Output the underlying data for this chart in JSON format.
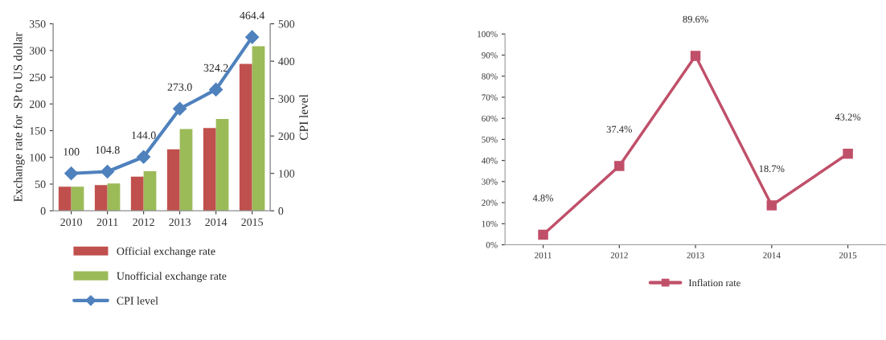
{
  "chart_data": [
    {
      "type": "bar",
      "categories": [
        "2010",
        "2011",
        "2012",
        "2013",
        "2014",
        "2015"
      ],
      "ylabel": "Exchange rate for  SP to US dollar",
      "y2label": "CPI level",
      "ylim": [
        0,
        350
      ],
      "yticks": [
        0,
        50,
        100,
        150,
        200,
        250,
        300,
        350
      ],
      "y2lim": [
        0,
        500
      ],
      "y2ticks": [
        0,
        100,
        200,
        300,
        400,
        500
      ],
      "legend": "bottom",
      "grid": false,
      "series": [
        {
          "name": "Official exchange rate",
          "color": "#c0504d",
          "values": [
            45,
            48,
            64,
            115,
            155,
            275
          ]
        },
        {
          "name": "Unofficial exchange rate",
          "color": "#9bbb59",
          "values": [
            45,
            51,
            74,
            153,
            172,
            308
          ]
        },
        {
          "name": "CPI level",
          "type": "line",
          "axis": "y2",
          "marker": "diamond",
          "color": "#4f81bd",
          "values": [
            100,
            104.8,
            144.0,
            273.0,
            324.2,
            464.4
          ],
          "value_labels": [
            "100",
            "104.8",
            "144.0",
            "273.0",
            "324.2",
            "464.4"
          ]
        }
      ]
    },
    {
      "type": "line",
      "categories": [
        "2011",
        "2012",
        "2013",
        "2014",
        "2015"
      ],
      "ylim": [
        0,
        100
      ],
      "yticks": [
        {
          "value": 0,
          "label": "0%"
        },
        {
          "value": 10,
          "label": "10%"
        },
        {
          "value": 20,
          "label": "20%"
        },
        {
          "value": 30,
          "label": "30%"
        },
        {
          "value": 40,
          "label": "40%"
        },
        {
          "value": 50,
          "label": "50%"
        },
        {
          "value": 60,
          "label": "60%"
        },
        {
          "value": 70,
          "label": "70%"
        },
        {
          "value": 80,
          "label": "80%"
        },
        {
          "value": 90,
          "label": "90%"
        },
        {
          "value": 100,
          "label": "100%"
        }
      ],
      "legend": "bottom",
      "grid": false,
      "series": [
        {
          "name": "Inflation rate",
          "color": "#c0506a",
          "marker": "square",
          "values": [
            4.8,
            37.4,
            89.6,
            18.7,
            43.2
          ],
          "value_labels": [
            "4.8%",
            "37.4%",
            "89.6%",
            "18.7%",
            "43.2%"
          ]
        }
      ]
    }
  ]
}
